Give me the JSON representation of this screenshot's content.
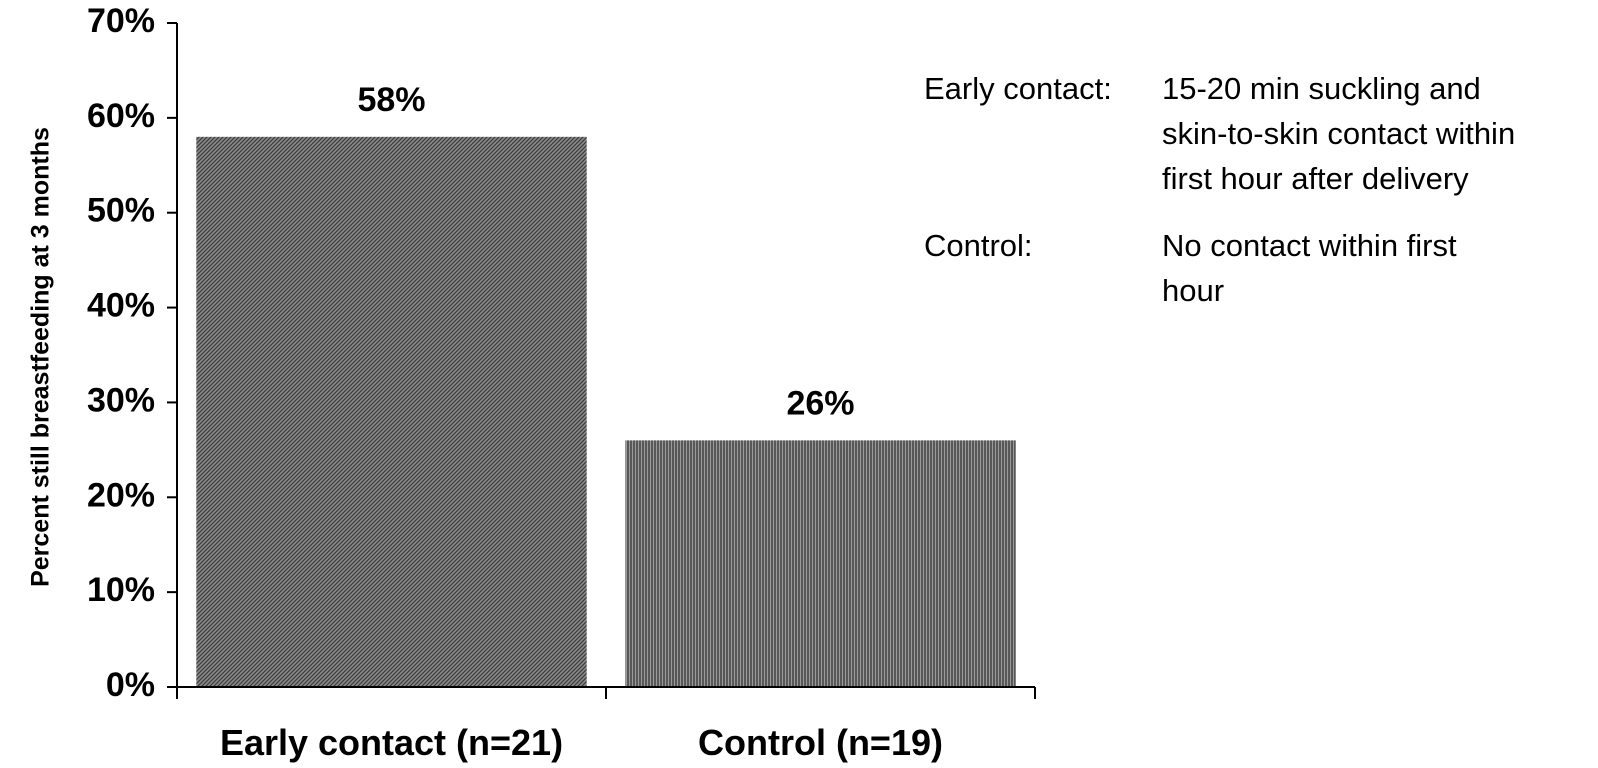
{
  "chart_data": {
    "type": "bar",
    "categories": [
      "Early contact (n=21)",
      "Control (n=19)"
    ],
    "values": [
      58,
      26
    ],
    "data_labels": [
      "58%",
      "26%"
    ],
    "ylabel": "Percent still breastfeeding at 3 months",
    "xlabel": "",
    "ylim": [
      0,
      70
    ],
    "yticks": [
      "0%",
      "10%",
      "20%",
      "30%",
      "40%",
      "50%",
      "60%",
      "70%"
    ],
    "grid": false,
    "bar_patterns": [
      "diagonal-hatch",
      "vertical-hatch"
    ],
    "bar_color": "#6e6e6e"
  },
  "notes": [
    {
      "term": "Early contact:",
      "lines": [
        "15-20 min suckling and",
        "skin-to-skin contact within",
        "first hour after delivery"
      ]
    },
    {
      "term": "Control:",
      "lines": [
        "No contact within first",
        "hour"
      ]
    }
  ]
}
